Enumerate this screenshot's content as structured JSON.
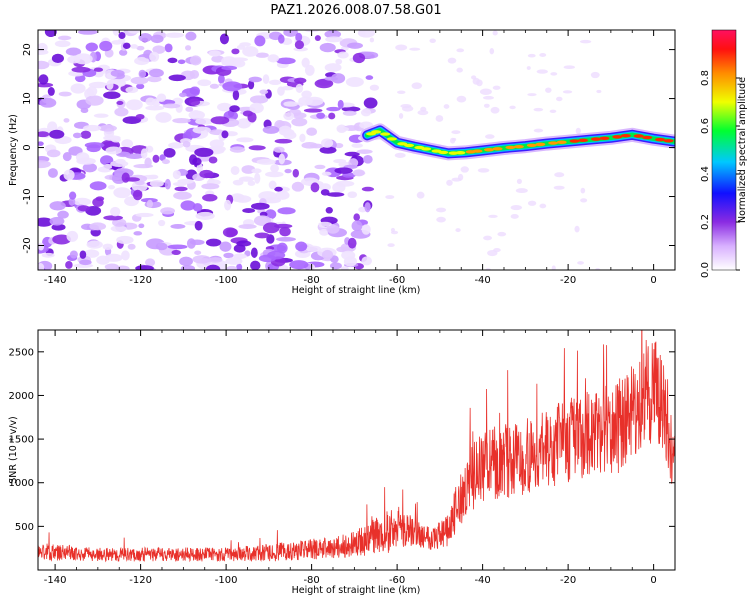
{
  "figure_title": "PAZ1.2026.008.07.58.G01",
  "chart_data": [
    {
      "type": "heatmap",
      "xlabel": "Height of straight line (km)",
      "ylabel": "Frequency (Hz)",
      "xlim": [
        -144,
        5
      ],
      "ylim": [
        -25,
        24
      ],
      "xticks": [
        -140,
        -120,
        -100,
        -80,
        -60,
        -40,
        -20,
        0
      ],
      "yticks": [
        -20,
        -10,
        0,
        10,
        20
      ],
      "noise_region_x": [
        -144,
        -66
      ],
      "signal_track": {
        "x": [
          -67,
          -64,
          -60,
          -56,
          -52,
          -48,
          -44,
          -40,
          -35,
          -30,
          -25,
          -20,
          -15,
          -10,
          -5,
          0,
          5
        ],
        "freq": [
          2.5,
          3.5,
          1.0,
          0.2,
          -0.5,
          -1.2,
          -1.0,
          -0.6,
          -0.1,
          0.3,
          0.8,
          1.2,
          1.6,
          2.0,
          2.6,
          1.8,
          1.2
        ],
        "amplitude": [
          0.3,
          0.4,
          0.5,
          0.45,
          0.55,
          0.65,
          0.72,
          0.75,
          0.8,
          0.82,
          0.85,
          0.9,
          0.92,
          0.95,
          0.97,
          0.9,
          0.85
        ]
      },
      "colorbar": {
        "label": "Normalized spectral amplitude",
        "range": [
          0,
          1
        ],
        "ticks": [
          "0.0",
          "0.2",
          "0.4",
          "0.6",
          "0.8"
        ]
      }
    },
    {
      "type": "line",
      "xlabel": "Height of straight line (km)",
      "ylabel": "SNR (10 * v/v)",
      "xlim": [
        -144,
        5
      ],
      "ylim": [
        0,
        2750
      ],
      "xticks": [
        -140,
        -120,
        -100,
        -80,
        -60,
        -40,
        -20,
        0
      ],
      "yticks": [
        500,
        1000,
        1500,
        2000,
        2500
      ],
      "series": [
        {
          "name": "SNR",
          "color": "#e8302a",
          "x": [
            -144,
            -130,
            -115,
            -100,
            -90,
            -82,
            -75,
            -70,
            -66,
            -62,
            -58,
            -55,
            -52,
            -48,
            -46,
            -44,
            -42,
            -40,
            -36,
            -32,
            -28,
            -24,
            -20,
            -16,
            -12,
            -8,
            -5,
            -3,
            -1,
            1,
            3,
            5
          ],
          "base": [
            200,
            170,
            170,
            170,
            185,
            220,
            240,
            280,
            350,
            420,
            450,
            400,
            360,
            420,
            700,
            900,
            1050,
            1150,
            1180,
            1200,
            1300,
            1350,
            1450,
            1500,
            1550,
            1600,
            1750,
            1850,
            1950,
            2000,
            1700,
            1200
          ],
          "amp": [
            100,
            80,
            80,
            80,
            100,
            120,
            120,
            150,
            200,
            250,
            200,
            150,
            150,
            200,
            300,
            350,
            400,
            400,
            400,
            450,
            450,
            450,
            500,
            500,
            500,
            550,
            550,
            550,
            600,
            600,
            550,
            400
          ]
        }
      ]
    }
  ]
}
